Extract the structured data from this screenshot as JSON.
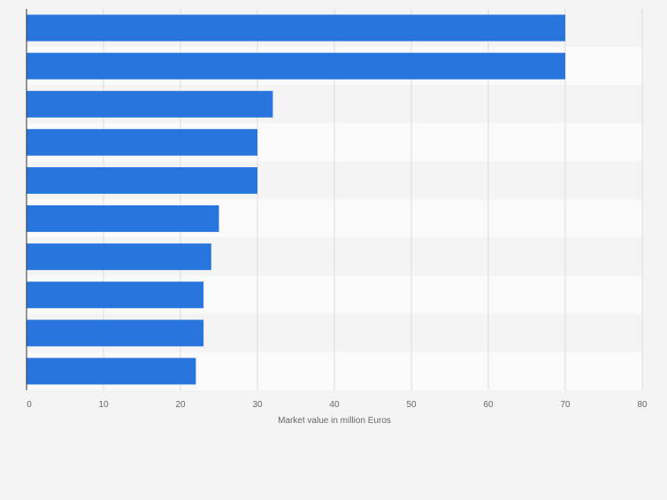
{
  "chart_data": {
    "type": "bar",
    "orientation": "horizontal",
    "categories": [
      "",
      "",
      "",
      "",
      "",
      "",
      "",
      "",
      "",
      ""
    ],
    "values": [
      70,
      70,
      32,
      30,
      30,
      25,
      24,
      23,
      23,
      22
    ],
    "title": "",
    "xlabel": "Market value in million Euros",
    "ylabel": "",
    "xlim": [
      0,
      80
    ],
    "x_ticks": [
      0,
      10,
      20,
      30,
      40,
      50,
      60,
      70,
      80
    ],
    "grid": true,
    "bar_color": "#2876dd",
    "band_colors": [
      "#f4f4f4",
      "#fafafa"
    ],
    "grid_color": "#dcdcdc",
    "axis_color": "#333333",
    "text_color": "#666666"
  }
}
